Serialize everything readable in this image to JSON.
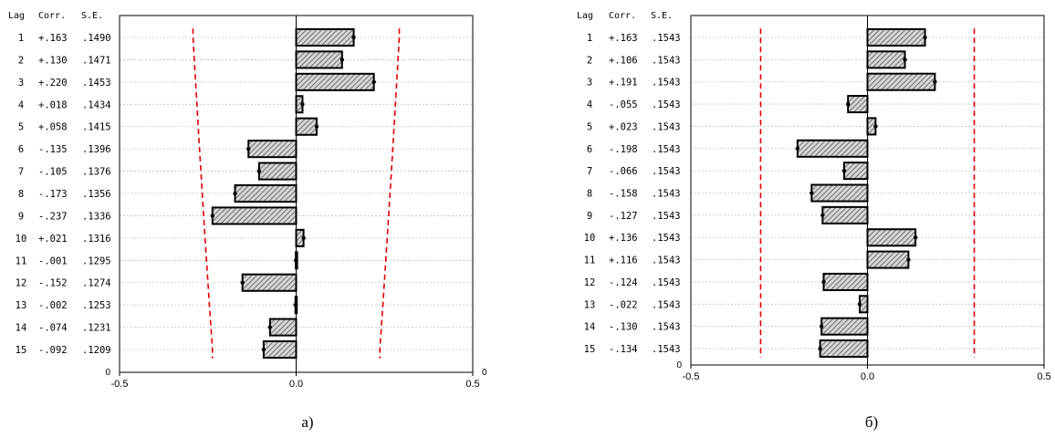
{
  "chart_data": [
    {
      "type": "bar",
      "orientation": "horizontal",
      "panel_label": "а)",
      "table_headers": [
        "Lag",
        "Corr.",
        "S.E."
      ],
      "lags": [
        "1",
        "2",
        "3",
        "4",
        "5",
        "6",
        "7",
        "8",
        "9",
        "10",
        "11",
        "12",
        "13",
        "14",
        "15"
      ],
      "corr_labels": [
        "+.163",
        "+.130",
        "+.220",
        "+.018",
        "+.058",
        "-.135",
        "-.105",
        "-.173",
        "-.237",
        "+.021",
        "-.001",
        "-.152",
        "-.002",
        "-.074",
        "-.092"
      ],
      "se_labels": [
        ".1490",
        ".1471",
        ".1453",
        ".1434",
        ".1415",
        ".1396",
        ".1376",
        ".1356",
        ".1336",
        ".1316",
        ".1295",
        ".1274",
        ".1253",
        ".1231",
        ".1209"
      ],
      "values": [
        0.163,
        0.13,
        0.22,
        0.018,
        0.058,
        -0.135,
        -0.105,
        -0.173,
        -0.237,
        0.021,
        -0.001,
        -0.152,
        -0.002,
        -0.074,
        -0.092
      ],
      "se": [
        0.149,
        0.1471,
        0.1453,
        0.1434,
        0.1415,
        0.1396,
        0.1376,
        0.1356,
        0.1336,
        0.1316,
        0.1295,
        0.1274,
        0.1253,
        0.1231,
        0.1209
      ],
      "confidence_limit_multiplier": 1.96,
      "xlim": [
        -0.5,
        0.5
      ],
      "x_ticks": [
        "-0.5",
        "0.0",
        "0.5"
      ],
      "y_corner_labels": [
        "0",
        "0"
      ],
      "grid": true,
      "colors": {
        "limit": "#e00000",
        "bar_fill": "#bdbdbd",
        "bar_stroke": "#000000",
        "grid": "#c0c0c0"
      }
    },
    {
      "type": "bar",
      "orientation": "horizontal",
      "panel_label": "б)",
      "table_headers": [
        "Lag",
        "Corr.",
        "S.E."
      ],
      "lags": [
        "1",
        "2",
        "3",
        "4",
        "5",
        "6",
        "7",
        "8",
        "9",
        "10",
        "11",
        "12",
        "13",
        "14",
        "15"
      ],
      "corr_labels": [
        "+.163",
        "+.106",
        "+.191",
        "-.055",
        "+.023",
        "-.198",
        "-.066",
        "-.158",
        "-.127",
        "+.136",
        "+.116",
        "-.124",
        "-.022",
        "-.130",
        "-.134"
      ],
      "se_labels": [
        ".1543",
        ".1543",
        ".1543",
        ".1543",
        ".1543",
        ".1543",
        ".1543",
        ".1543",
        ".1543",
        ".1543",
        ".1543",
        ".1543",
        ".1543",
        ".1543",
        ".1543"
      ],
      "values": [
        0.163,
        0.106,
        0.191,
        -0.055,
        0.023,
        -0.198,
        -0.066,
        -0.158,
        -0.127,
        0.136,
        0.116,
        -0.124,
        -0.022,
        -0.13,
        -0.134
      ],
      "se": [
        0.1543,
        0.1543,
        0.1543,
        0.1543,
        0.1543,
        0.1543,
        0.1543,
        0.1543,
        0.1543,
        0.1543,
        0.1543,
        0.1543,
        0.1543,
        0.1543,
        0.1543
      ],
      "confidence_limit_multiplier": 1.96,
      "xlim": [
        -0.5,
        0.5
      ],
      "x_ticks": [
        "-0.5",
        "0.0",
        "0.5"
      ],
      "y_corner_labels": [
        "0"
      ],
      "grid": true,
      "colors": {
        "limit": "#e00000",
        "bar_fill": "#bdbdbd",
        "bar_stroke": "#000000",
        "grid": "#c0c0c0"
      }
    }
  ]
}
